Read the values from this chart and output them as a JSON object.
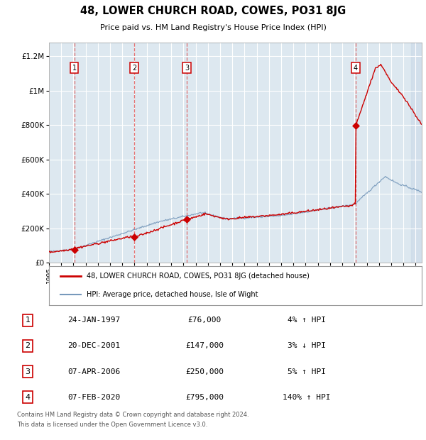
{
  "title": "48, LOWER CHURCH ROAD, COWES, PO31 8JG",
  "subtitle": "Price paid vs. HM Land Registry's House Price Index (HPI)",
  "legend_line1": "48, LOWER CHURCH ROAD, COWES, PO31 8JG (detached house)",
  "legend_line2": "HPI: Average price, detached house, Isle of Wight",
  "footer_line1": "Contains HM Land Registry data © Crown copyright and database right 2024.",
  "footer_line2": "This data is licensed under the Open Government Licence v3.0.",
  "sale_points": [
    {
      "label": "1",
      "date": "24-JAN-1997",
      "price": 76000,
      "pct": "4%",
      "dir": "↑",
      "year": 1997.07
    },
    {
      "label": "2",
      "date": "20-DEC-2001",
      "price": 147000,
      "pct": "3%",
      "dir": "↓",
      "year": 2001.97
    },
    {
      "label": "3",
      "date": "07-APR-2006",
      "price": 250000,
      "pct": "5%",
      "dir": "↑",
      "year": 2006.27
    },
    {
      "label": "4",
      "date": "07-FEB-2020",
      "price": 795000,
      "pct": "140%",
      "dir": "↑",
      "year": 2020.1
    }
  ],
  "xlim": [
    1995,
    2025.5
  ],
  "ylim": [
    0,
    1280000
  ],
  "yticks": [
    0,
    200000,
    400000,
    600000,
    800000,
    1000000,
    1200000
  ],
  "ytick_labels": [
    "£0",
    "£200K",
    "£400K",
    "£600K",
    "£800K",
    "£1M",
    "£1.2M"
  ],
  "red_color": "#cc0000",
  "blue_color": "#7799bb",
  "bg_color": "#dde8f0",
  "grid_color": "#ffffff",
  "vline_color": "#dd4444"
}
